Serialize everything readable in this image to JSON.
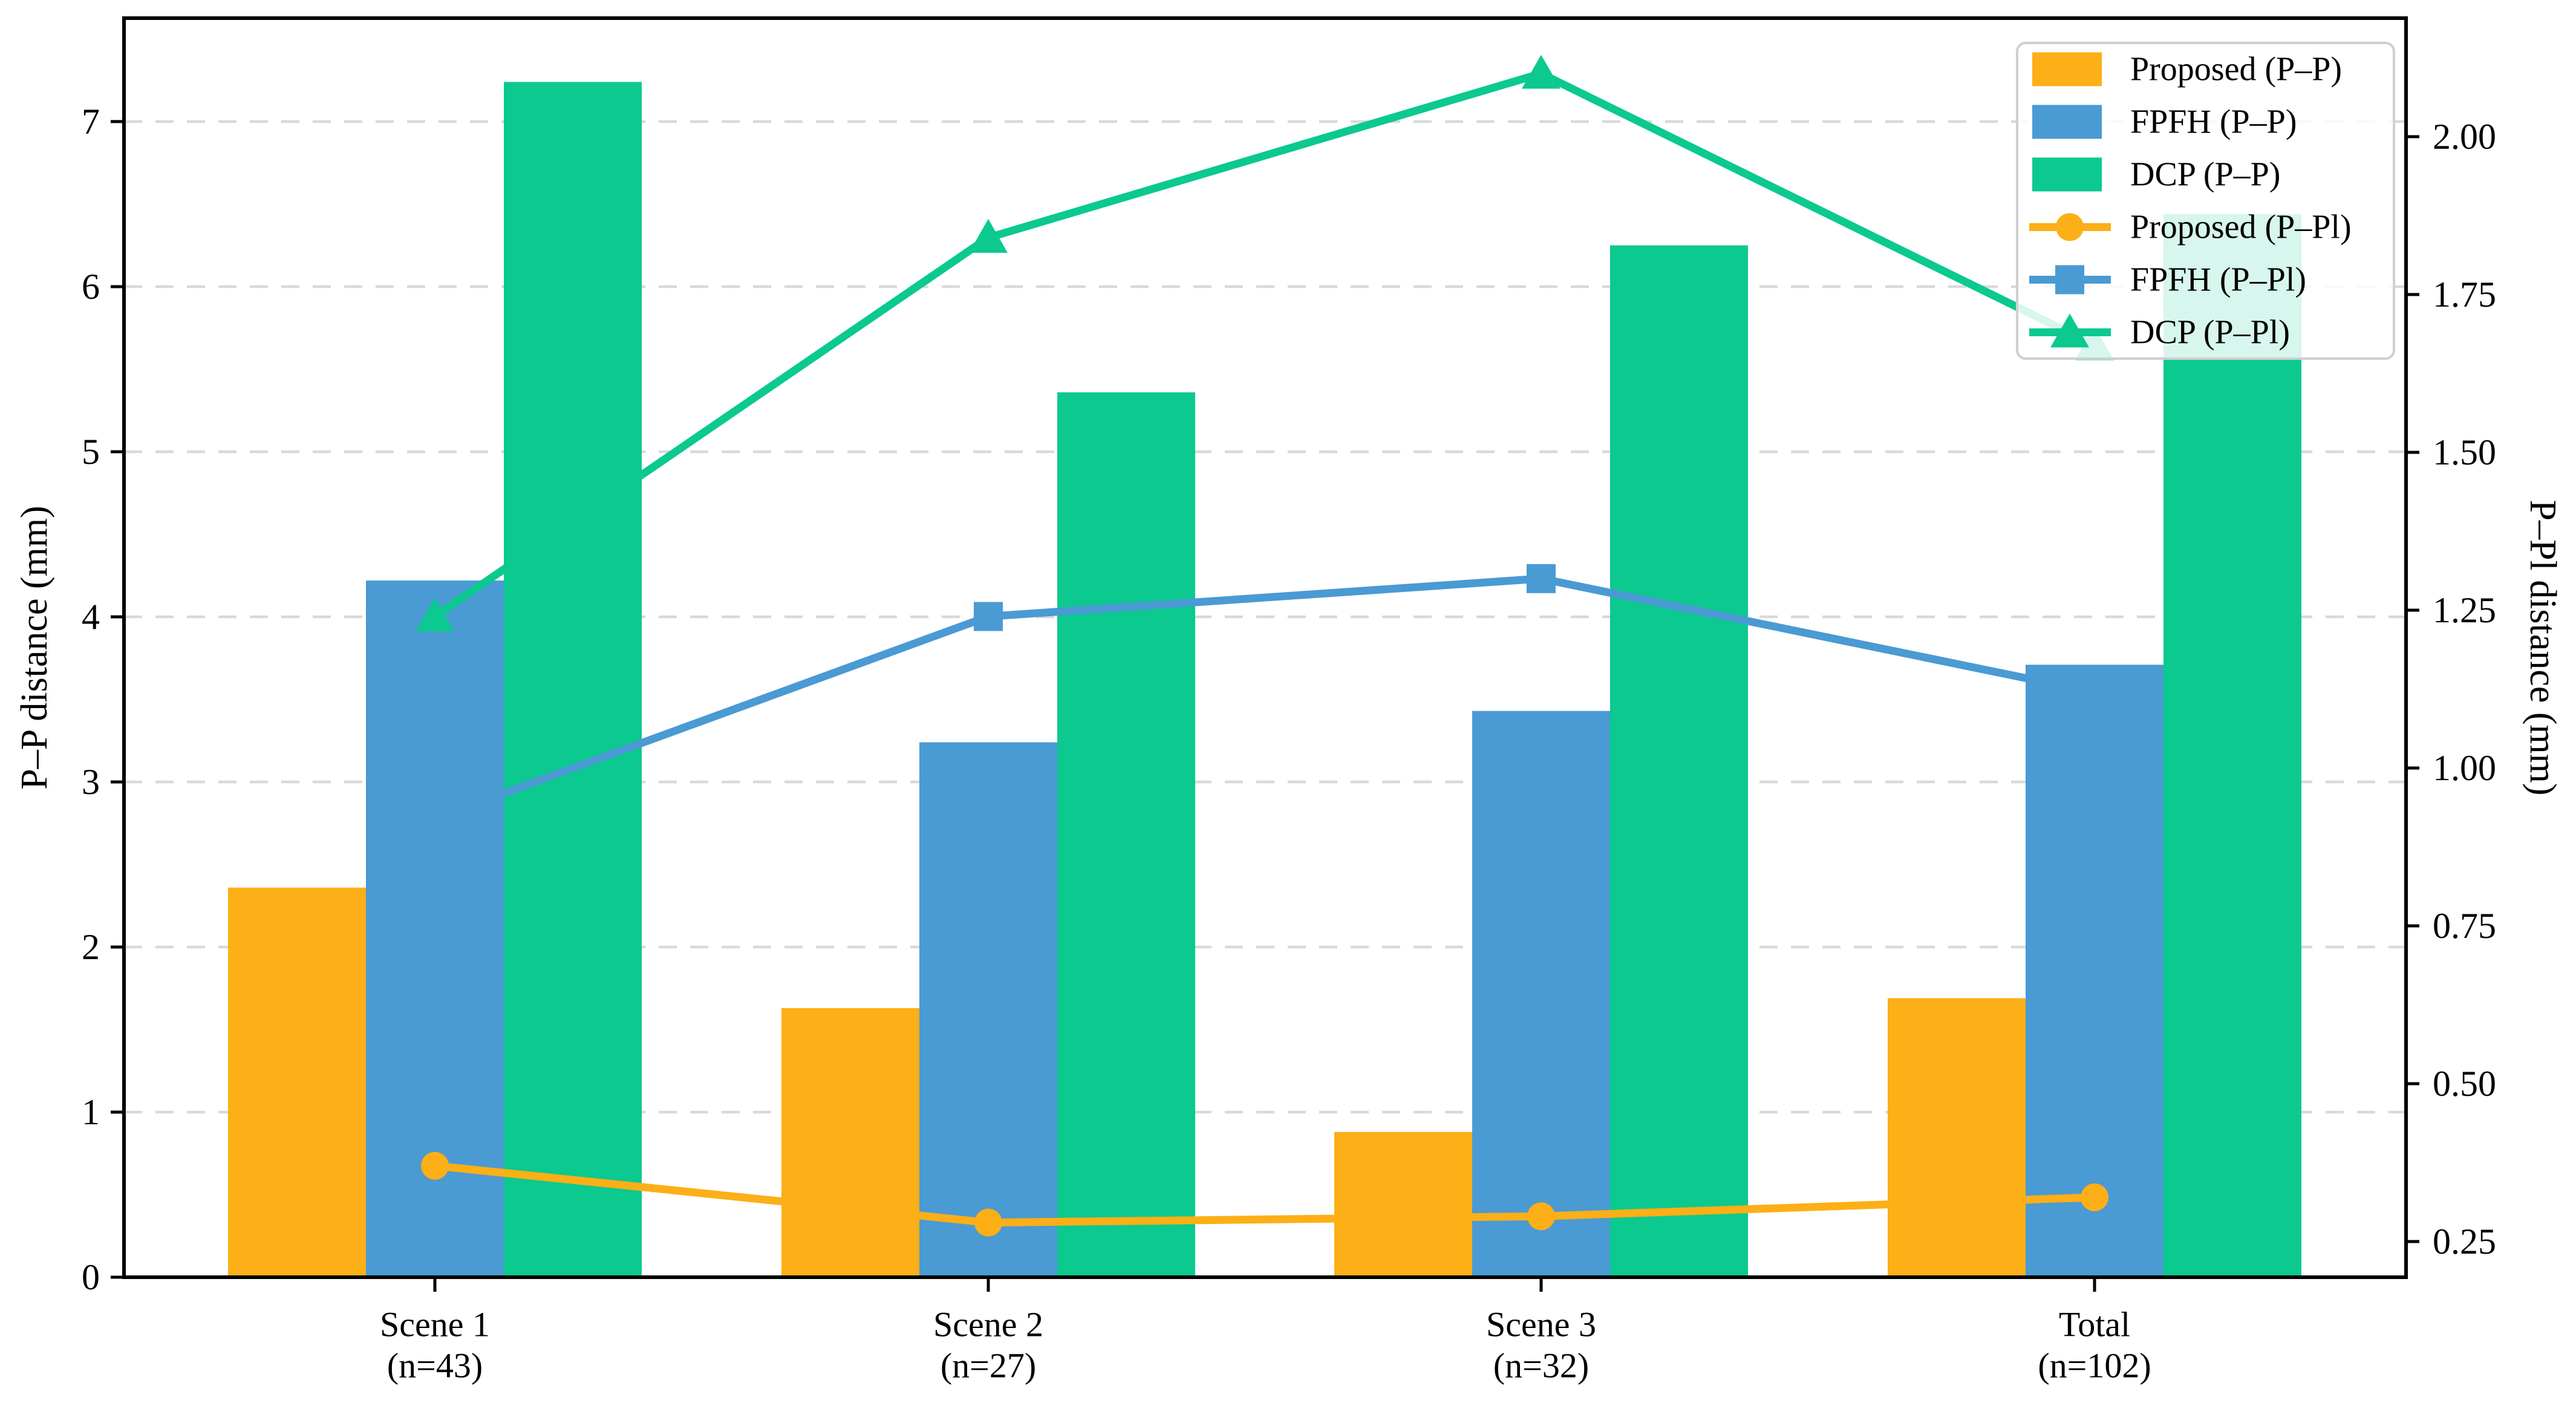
{
  "chart_data": {
    "type": "bar+line",
    "title": "",
    "categories": [
      "Scene 1",
      "Scene 2",
      "Scene 3",
      "Total"
    ],
    "category_counts": [
      "(n=43)",
      "(n=27)",
      "(n=32)",
      "(n=102)"
    ],
    "left_axis": {
      "label": "P–P distance (mm)",
      "tick_labels": [
        "0",
        "1",
        "2",
        "3",
        "4",
        "5",
        "6",
        "7"
      ],
      "tick_values": [
        0,
        1,
        2,
        3,
        4,
        5,
        6,
        7
      ],
      "range": [
        0,
        7.63
      ],
      "applies_to": "bars"
    },
    "right_axis": {
      "label": "P–Pl distance (mm)",
      "tick_labels": [
        "0.25",
        "0.50",
        "0.75",
        "1.00",
        "1.25",
        "1.50",
        "1.75",
        "2.00"
      ],
      "tick_values": [
        0.25,
        0.5,
        0.75,
        1.0,
        1.25,
        1.5,
        1.75,
        2.0
      ],
      "range": [
        0.19,
        2.19
      ],
      "applies_to": "lines"
    },
    "bar_series": [
      {
        "name": "Proposed (P–P)",
        "series_key": "proposed",
        "color": "#FCAF16",
        "values": [
          2.36,
          1.63,
          0.88,
          1.69
        ]
      },
      {
        "name": "FPFH (P–P)",
        "series_key": "fpfh",
        "color": "#4A9AD3",
        "values": [
          4.22,
          3.24,
          3.43,
          3.71
        ]
      },
      {
        "name": "DCP (P–P)",
        "series_key": "dcp",
        "color": "#0BC98F",
        "values": [
          7.24,
          5.36,
          6.25,
          6.44
        ]
      }
    ],
    "line_series": [
      {
        "name": "Proposed (P–Pl)",
        "series_key": "proposed-line",
        "color": "#FCAF16",
        "marker": "circle",
        "values": [
          0.37,
          0.28,
          0.29,
          0.32
        ]
      },
      {
        "name": "FPFH (P–Pl)",
        "series_key": "fpfh-line",
        "color": "#4A9AD3",
        "marker": "square",
        "values": [
          0.92,
          1.24,
          1.3,
          1.12
        ]
      },
      {
        "name": "DCP (P–Pl)",
        "series_key": "dcp-line",
        "color": "#0BC98F",
        "marker": "triangle",
        "values": [
          1.24,
          1.84,
          2.1,
          1.67
        ]
      }
    ],
    "legend": {
      "position": "upper right",
      "entries": [
        {
          "label": "Proposed (P–P)",
          "swatch": "bar",
          "color": "#FCAF16",
          "marker": null
        },
        {
          "label": "FPFH (P–P)",
          "swatch": "bar",
          "color": "#4A9AD3",
          "marker": null
        },
        {
          "label": "DCP (P–P)",
          "swatch": "bar",
          "color": "#0BC98F",
          "marker": null
        },
        {
          "label": "Proposed (P–Pl)",
          "swatch": "line",
          "color": "#FCAF16",
          "marker": "circle"
        },
        {
          "label": "FPFH (P–Pl)",
          "swatch": "line",
          "color": "#4A9AD3",
          "marker": "square"
        },
        {
          "label": "DCP (P–Pl)",
          "swatch": "line",
          "color": "#0BC98F",
          "marker": "triangle"
        }
      ]
    },
    "grid": {
      "horizontal": true,
      "style": "dashed",
      "at_left_ticks": [
        1,
        2,
        3,
        4,
        5,
        6,
        7
      ]
    },
    "styles": {
      "background": "#ffffff",
      "grid_color": "#D9D9D9",
      "axis_color": "#000000",
      "legend_border_color": "#CFCFCF",
      "legend_fill": "rgba(255,255,255,0.84)"
    }
  }
}
